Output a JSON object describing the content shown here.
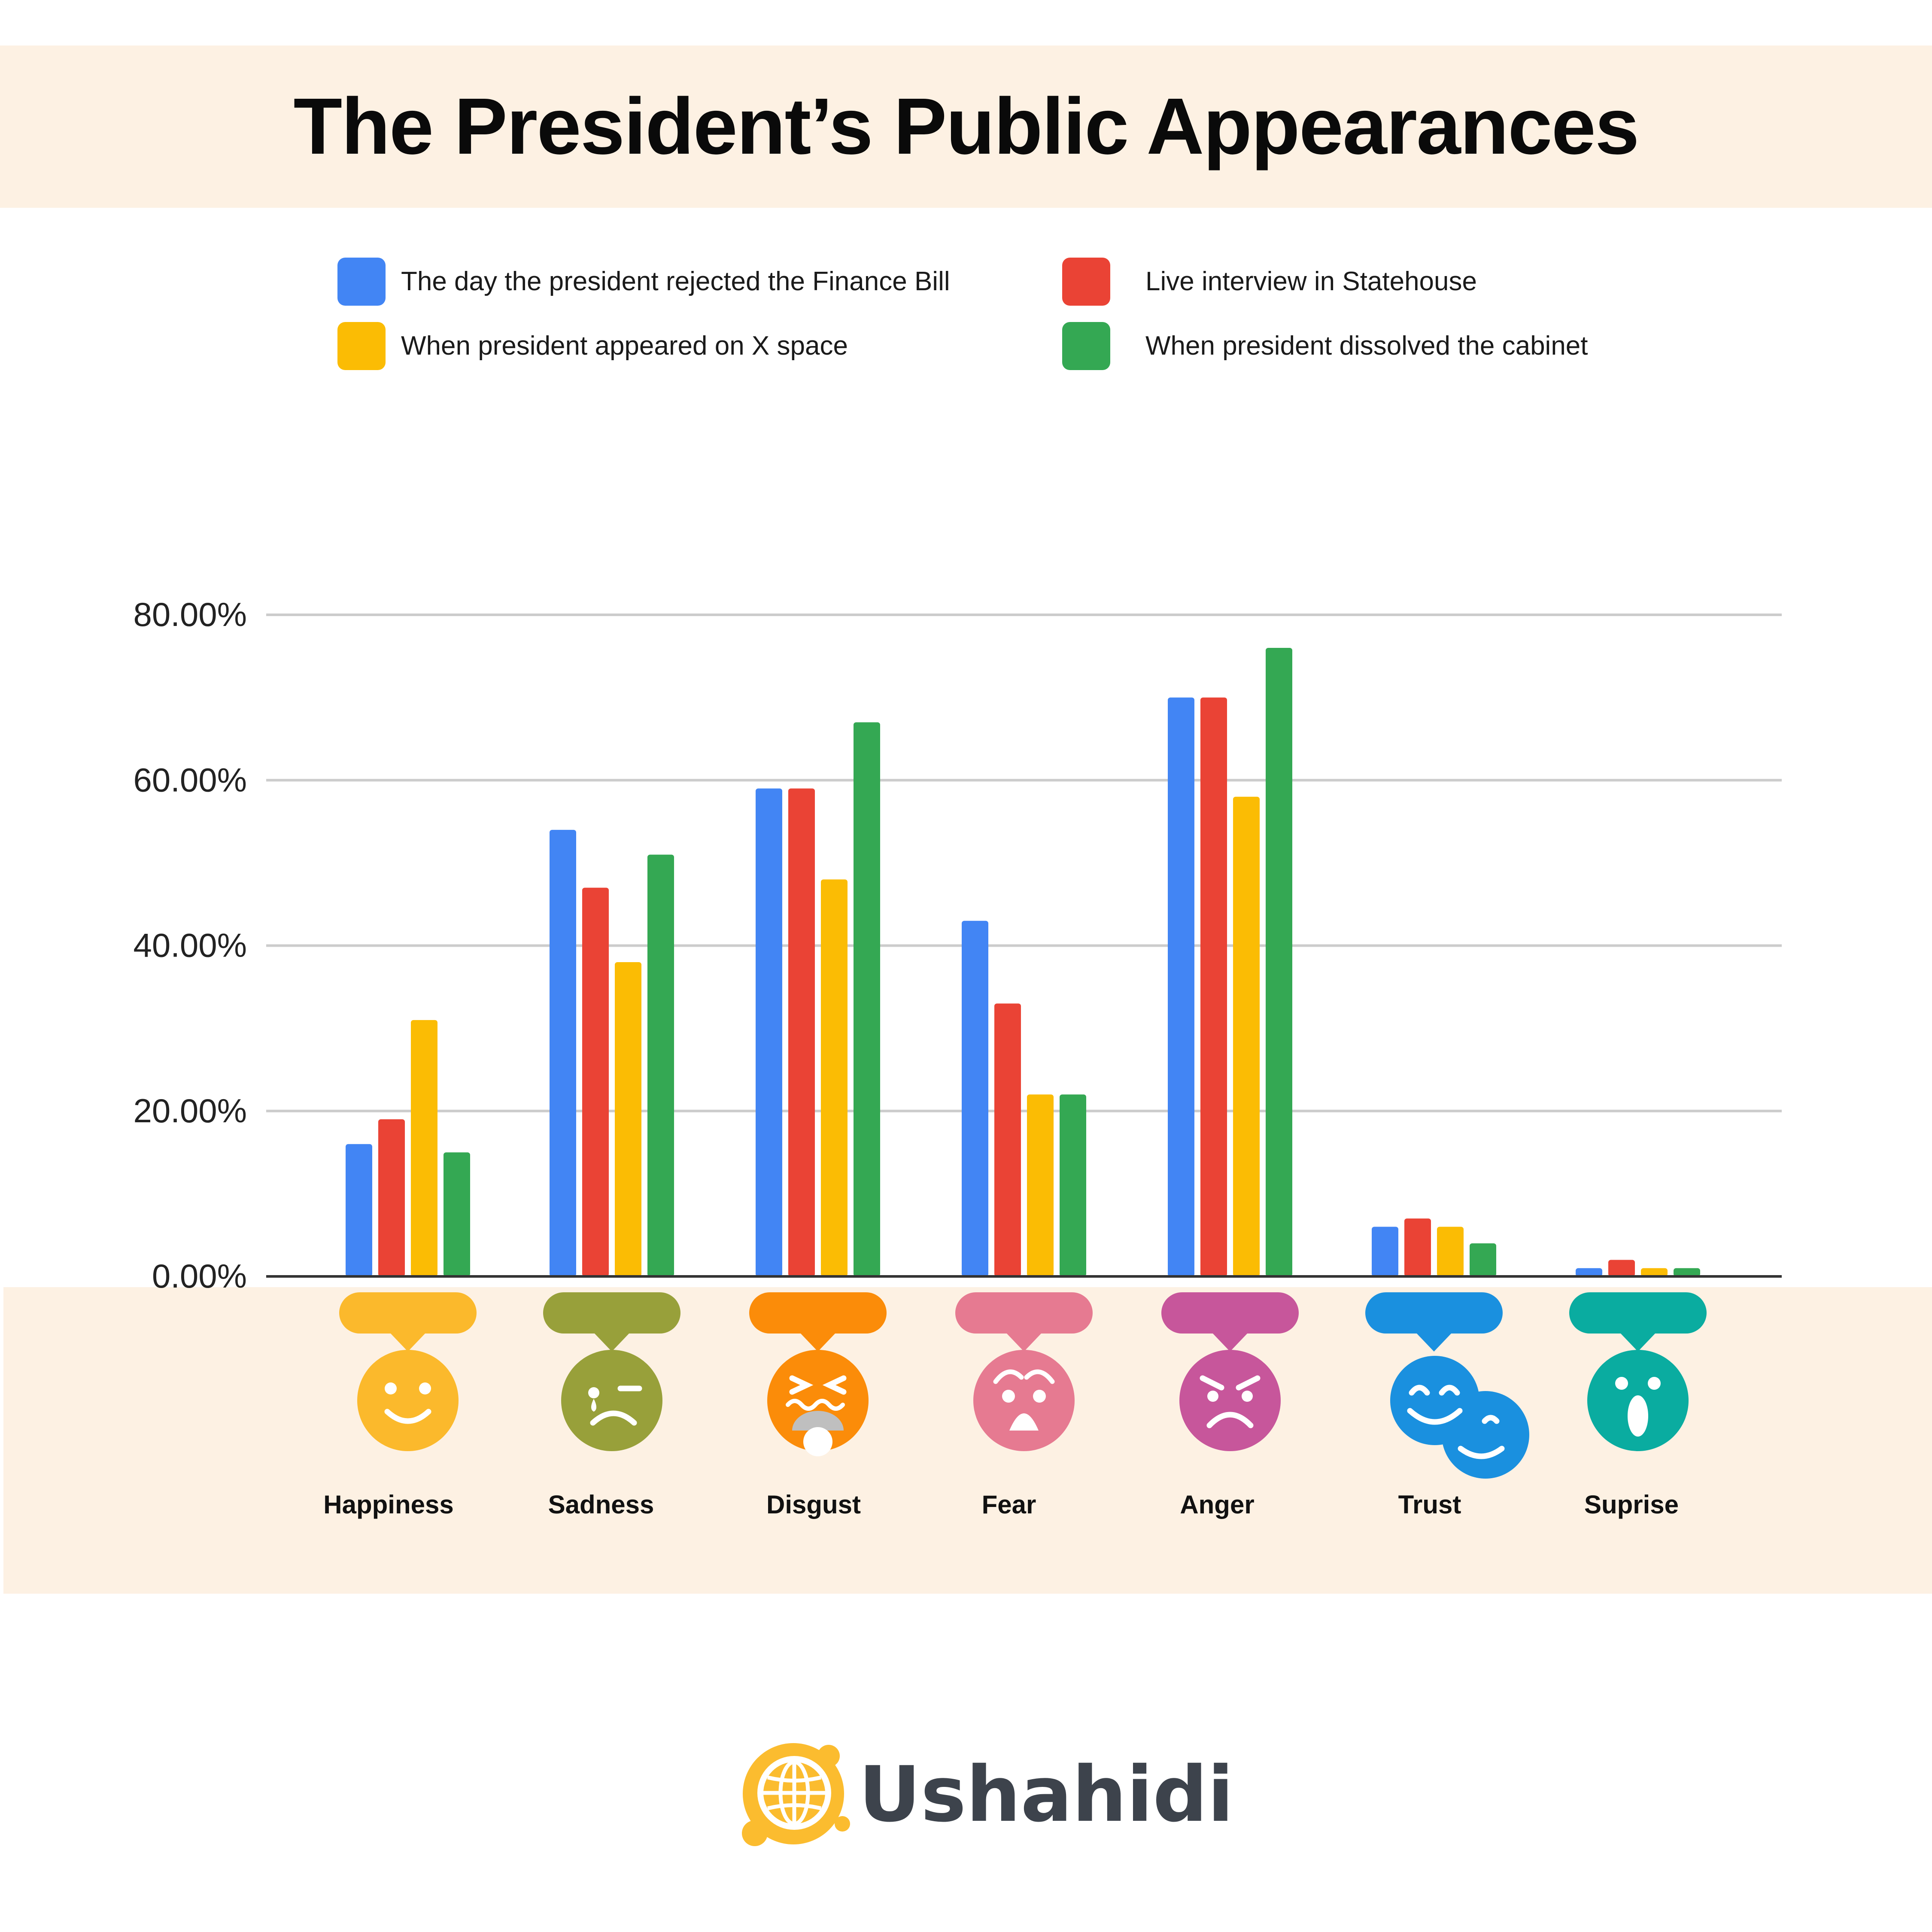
{
  "title": "The President’s Public Appearances",
  "brand": {
    "name": "Ushahidi",
    "logo_icon": "globe-logo-icon",
    "logo_color": "#fbbc2f"
  },
  "legend": [
    {
      "label": "The day the president rejected the Finance Bill",
      "color": "#4285f4"
    },
    {
      "label": "Live interview in Statehouse",
      "color": "#ea4335"
    },
    {
      "label": "When president appeared on X space",
      "color": "#fbbc04"
    },
    {
      "label": "When president dissolved the cabinet",
      "color": "#34a853"
    }
  ],
  "emotions": [
    {
      "label": "Happiness",
      "icon": "happy-face-icon",
      "color": "#fbb92c"
    },
    {
      "label": "Sadness",
      "icon": "sad-face-icon",
      "color": "#98a03a"
    },
    {
      "label": "Disgust",
      "icon": "disgust-face-icon",
      "color": "#fb8c09"
    },
    {
      "label": "Fear",
      "icon": "fear-face-icon",
      "color": "#e67a91"
    },
    {
      "label": "Anger",
      "icon": "angry-face-icon",
      "color": "#c7569b"
    },
    {
      "label": "Trust",
      "icon": "trust-faces-icon",
      "color": "#1a90df"
    },
    {
      "label": "Suprise",
      "icon": "surprised-face-icon",
      "color": "#0aaca0"
    }
  ],
  "chart_data": {
    "type": "bar",
    "categories": [
      "Happiness",
      "Sadness",
      "Disgust",
      "Fear",
      "Anger",
      "Trust",
      "Suprise"
    ],
    "series": [
      {
        "name": "The day the president rejected the Finance Bill",
        "color": "#4285f4",
        "values": [
          16,
          54,
          59,
          43,
          70,
          6,
          1
        ]
      },
      {
        "name": "Live interview in Statehouse",
        "color": "#ea4335",
        "values": [
          19,
          47,
          59,
          33,
          70,
          7,
          2
        ]
      },
      {
        "name": "When president appeared on X space",
        "color": "#fbbc04",
        "values": [
          31,
          38,
          48,
          22,
          58,
          6,
          1
        ]
      },
      {
        "name": "When president dissolved the cabinet",
        "color": "#34a853",
        "values": [
          15,
          51,
          67,
          22,
          76,
          4,
          1
        ]
      }
    ],
    "ylim": [
      0,
      80
    ],
    "yticks": [
      0,
      20,
      40,
      60,
      80
    ],
    "ytick_labels": [
      "0.00%",
      "20.00%",
      "40.00%",
      "60.00%",
      "80.00%"
    ],
    "grid": true,
    "legend_position": "top"
  }
}
